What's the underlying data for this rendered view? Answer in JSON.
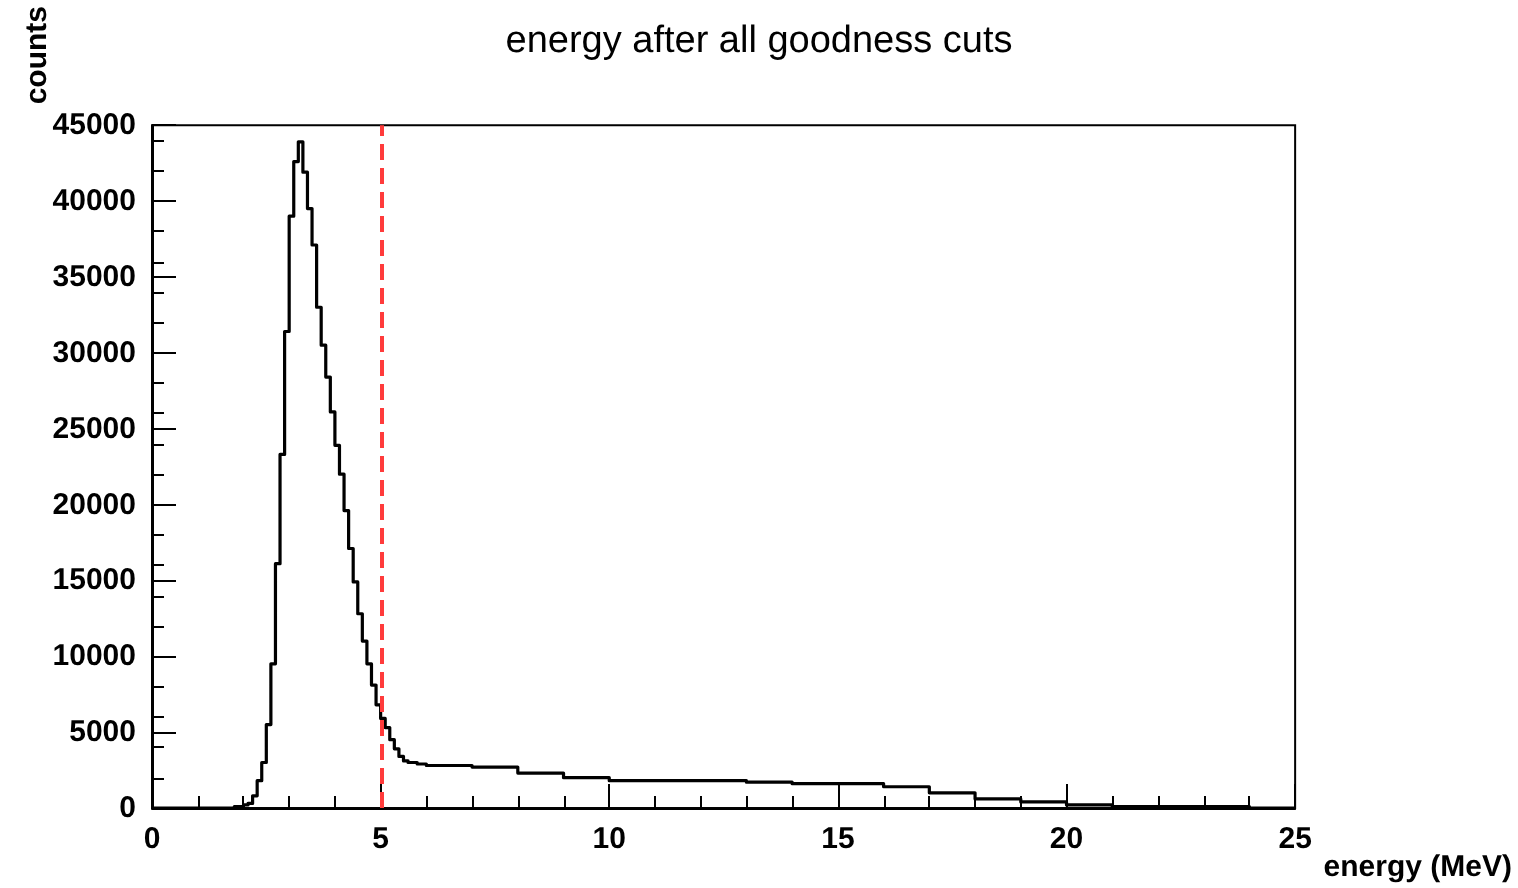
{
  "chart_data": {
    "type": "histogram",
    "title": "energy after all goodness cuts",
    "xlabel": "energy (MeV)",
    "ylabel": "counts",
    "bins": [
      0,
      1.8,
      1.9,
      2.0,
      2.1,
      2.2,
      2.3,
      2.4,
      2.5,
      2.6,
      2.7,
      2.8,
      2.9,
      3.0,
      3.1,
      3.2,
      3.3,
      3.4,
      3.5,
      3.6,
      3.7,
      3.8,
      3.9,
      4.0,
      4.1,
      4.2,
      4.3,
      4.4,
      4.5,
      4.6,
      4.7,
      4.8,
      4.9,
      5.0,
      5.1,
      5.2,
      5.3,
      5.4,
      5.5,
      5.6,
      5.7,
      5.8,
      5.9,
      6,
      7,
      8,
      9,
      10,
      11,
      12,
      13,
      14,
      15,
      16,
      17,
      18,
      19,
      20,
      21,
      22,
      23,
      24,
      25
    ],
    "values": [
      0,
      100,
      100,
      200,
      300,
      800,
      1800,
      3000,
      5500,
      9500,
      16100,
      23300,
      31400,
      39000,
      42600,
      43900,
      41900,
      39500,
      37100,
      33000,
      30500,
      28400,
      26100,
      23900,
      22000,
      19600,
      17100,
      14900,
      12800,
      11000,
      9500,
      8100,
      6800,
      5900,
      5300,
      4500,
      3900,
      3400,
      3100,
      3000,
      3000,
      2900,
      2900,
      2800,
      2700,
      2300,
      2000,
      1800,
      1800,
      1800,
      1700,
      1600,
      1600,
      1400,
      1000,
      600,
      400,
      200,
      100,
      100,
      100,
      0
    ],
    "color": "#000000",
    "xlim": [
      0,
      25
    ],
    "xticks": [
      0,
      5,
      10,
      15,
      20,
      25
    ],
    "ylim": [
      0,
      45000
    ],
    "yticks": [
      0,
      5000,
      10000,
      15000,
      20000,
      25000,
      30000,
      35000,
      40000,
      45000
    ],
    "ref_lines": [
      {
        "axis": "x",
        "value": 5,
        "color": "#ff3b3b",
        "line_style": "dashed"
      }
    ],
    "grid": false
  }
}
